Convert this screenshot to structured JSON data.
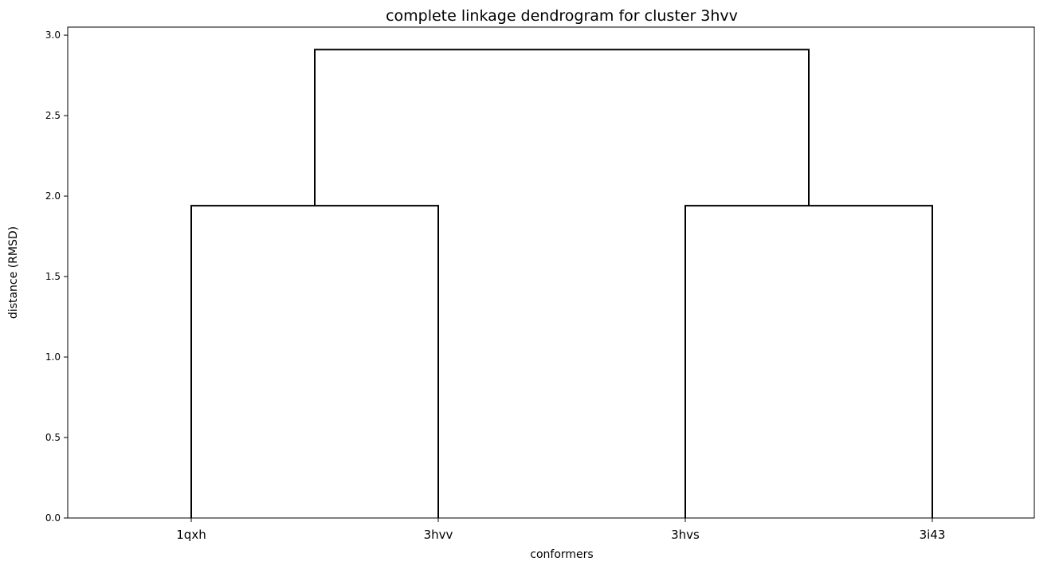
{
  "chart_data": {
    "type": "dendrogram",
    "title": "complete linkage dendrogram for cluster 3hvv",
    "xlabel": "conformers",
    "ylabel": "distance (RMSD)",
    "leaves": [
      "1qxh",
      "3hvv",
      "3hvs",
      "3i43"
    ],
    "ylim": [
      0,
      3.05
    ],
    "yticks": [
      0.0,
      0.5,
      1.0,
      1.5,
      2.0,
      2.5,
      3.0
    ],
    "ytick_labels": [
      "0.0",
      "0.5",
      "1.0",
      "1.5",
      "2.0",
      "2.5",
      "3.0"
    ],
    "links": [
      {
        "left": "1qxh",
        "right": "3hvv",
        "height": 1.94
      },
      {
        "left": "3hvs",
        "right": "3i43",
        "height": 1.94
      },
      {
        "left": "1qxh+3hvv",
        "right": "3hvs+3i43",
        "height": 2.91
      }
    ],
    "line_color": "#000000",
    "grid": false
  }
}
